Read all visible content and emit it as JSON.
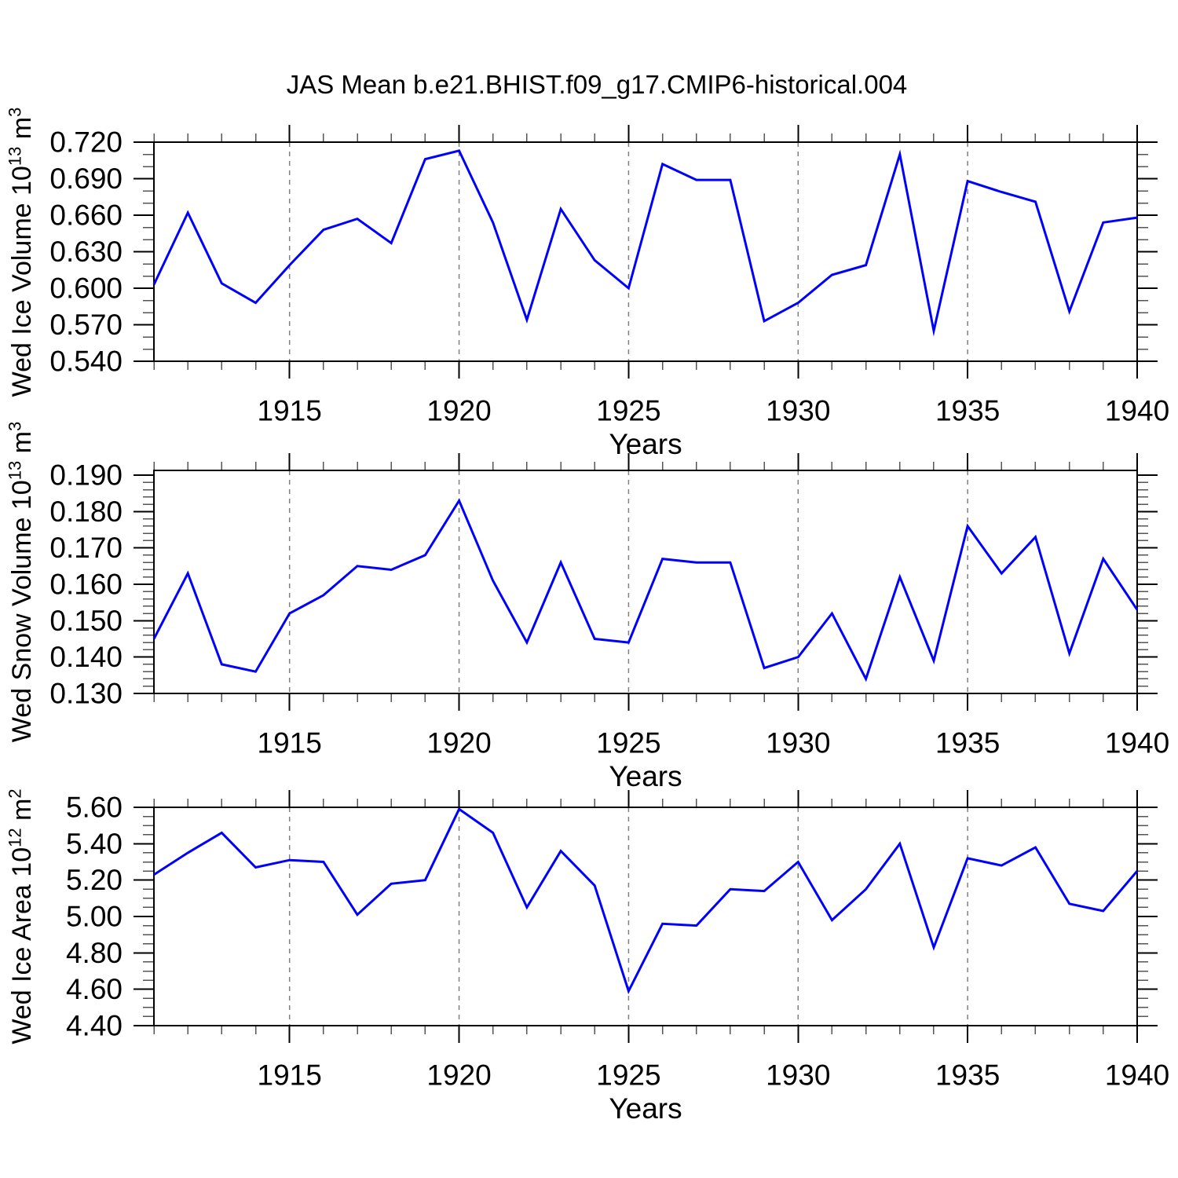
{
  "title": "JAS Mean b.e21.BHIST.f09_g17.CMIP6-historical.004",
  "colors": {
    "line": "#0000ff",
    "grid": "#808080",
    "frame": "#000000",
    "minor_tick": "#555555"
  },
  "xaxis": {
    "label": "Years",
    "xlim": [
      1911,
      1940
    ],
    "tick_values": [
      1915,
      1920,
      1925,
      1930,
      1935,
      1940
    ],
    "tick_labels": [
      "1915",
      "1920",
      "1925",
      "1930",
      "1935",
      "1940"
    ],
    "grid_values": [
      1915,
      1920,
      1925,
      1930,
      1935
    ],
    "minor_step": 1
  },
  "chart_data": [
    {
      "type": "line",
      "name": "wed-ice-volume",
      "ylabel": "Wed Ice Volume 10^13 m^3",
      "ylabel_parts": [
        {
          "t": "Wed Ice Volume 10"
        },
        {
          "t": "13",
          "sup": true
        },
        {
          "t": " m"
        },
        {
          "t": "3",
          "sup": true
        }
      ],
      "x": [
        1911,
        1912,
        1913,
        1914,
        1915,
        1916,
        1917,
        1918,
        1919,
        1920,
        1921,
        1922,
        1923,
        1924,
        1925,
        1926,
        1927,
        1928,
        1929,
        1930,
        1931,
        1932,
        1933,
        1934,
        1935,
        1936,
        1937,
        1938,
        1939,
        1940
      ],
      "values": [
        0.603,
        0.662,
        0.604,
        0.588,
        0.619,
        0.648,
        0.657,
        0.637,
        0.706,
        0.713,
        0.654,
        0.574,
        0.665,
        0.623,
        0.6,
        0.702,
        0.689,
        0.689,
        0.573,
        0.588,
        0.611,
        0.619,
        0.71,
        0.565,
        0.688,
        0.679,
        0.671,
        0.581,
        0.654,
        0.658
      ],
      "ylim": [
        0.54,
        0.72
      ],
      "yticks": [
        0.54,
        0.57,
        0.6,
        0.63,
        0.66,
        0.69,
        0.72
      ],
      "ytick_labels": [
        "0.540",
        "0.570",
        "0.600",
        "0.630",
        "0.660",
        "0.690",
        "0.720"
      ],
      "y_minor_step": 0.01,
      "grid": "x-major-dashed"
    },
    {
      "type": "line",
      "name": "wed-snow-volume",
      "ylabel": "Wed Snow Volume 10^13 m^3",
      "ylabel_parts": [
        {
          "t": "Wed Snow Volume 10"
        },
        {
          "t": "13",
          "sup": true
        },
        {
          "t": " m"
        },
        {
          "t": "3",
          "sup": true
        }
      ],
      "x": [
        1911,
        1912,
        1913,
        1914,
        1915,
        1916,
        1917,
        1918,
        1919,
        1920,
        1921,
        1922,
        1923,
        1924,
        1925,
        1926,
        1927,
        1928,
        1929,
        1930,
        1931,
        1932,
        1933,
        1934,
        1935,
        1936,
        1937,
        1938,
        1939,
        1940
      ],
      "values": [
        0.145,
        0.163,
        0.138,
        0.136,
        0.152,
        0.157,
        0.165,
        0.164,
        0.168,
        0.183,
        0.161,
        0.144,
        0.166,
        0.145,
        0.144,
        0.167,
        0.166,
        0.166,
        0.137,
        0.14,
        0.152,
        0.134,
        0.162,
        0.139,
        0.176,
        0.163,
        0.173,
        0.141,
        0.167,
        0.153
      ],
      "ylim": [
        0.13,
        0.1913
      ],
      "yticks": [
        0.13,
        0.14,
        0.15,
        0.16,
        0.17,
        0.18,
        0.19
      ],
      "ytick_labels": [
        "0.130",
        "0.140",
        "0.150",
        "0.160",
        "0.170",
        "0.180",
        "0.190"
      ],
      "y_minor_step": 0.002,
      "grid": "x-major-dashed"
    },
    {
      "type": "line",
      "name": "wed-ice-area",
      "ylabel": "Wed Ice Area 10^12 m^2",
      "ylabel_parts": [
        {
          "t": "Wed Ice Area 10"
        },
        {
          "t": "12",
          "sup": true
        },
        {
          "t": " m"
        },
        {
          "t": "2",
          "sup": true
        }
      ],
      "x": [
        1911,
        1912,
        1913,
        1914,
        1915,
        1916,
        1917,
        1918,
        1919,
        1920,
        1921,
        1922,
        1923,
        1924,
        1925,
        1926,
        1927,
        1928,
        1929,
        1930,
        1931,
        1932,
        1933,
        1934,
        1935,
        1936,
        1937,
        1938,
        1939,
        1940
      ],
      "values": [
        5.23,
        5.35,
        5.46,
        5.27,
        5.31,
        5.3,
        5.01,
        5.18,
        5.2,
        5.59,
        5.46,
        5.05,
        5.36,
        5.17,
        4.59,
        4.96,
        4.95,
        5.15,
        5.14,
        5.3,
        4.98,
        5.15,
        5.4,
        4.83,
        5.32,
        5.28,
        5.38,
        5.07,
        5.03,
        5.25
      ],
      "ylim": [
        4.4,
        5.6
      ],
      "yticks": [
        4.4,
        4.6,
        4.8,
        5.0,
        5.2,
        5.4,
        5.6
      ],
      "ytick_labels": [
        "4.40",
        "4.60",
        "4.80",
        "5.00",
        "5.20",
        "5.40",
        "5.60"
      ],
      "y_minor_step": 0.05,
      "grid": "x-major-dashed"
    }
  ]
}
